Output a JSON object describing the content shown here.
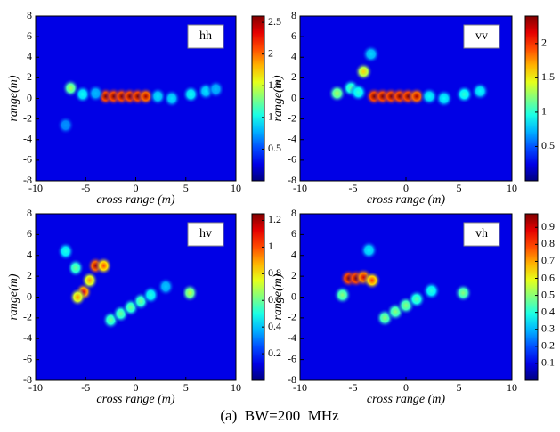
{
  "chart_data": [
    {
      "type": "heatmap",
      "label": "hh",
      "xlabel": "cross range (m)",
      "ylabel": "range(m)",
      "xlim": [
        -10,
        10
      ],
      "ylim": [
        -8,
        8
      ],
      "xticks": [
        -10,
        -5,
        0,
        5,
        10
      ],
      "yticks": [
        -8,
        -6,
        -4,
        -2,
        0,
        2,
        4,
        6,
        8
      ],
      "clim": [
        0,
        2.6
      ],
      "cticks": [
        0.5,
        1,
        1.5,
        2,
        2.5
      ],
      "x": [
        -3,
        -2.2,
        -1.4,
        -0.6,
        0.2,
        1,
        -6.5,
        -5.3,
        -4,
        -7,
        2.2,
        3.6,
        5.5,
        7,
        8
      ],
      "y": [
        0.2,
        0.2,
        0.2,
        0.2,
        0.2,
        0.2,
        1.0,
        0.4,
        0.5,
        -2.6,
        0.2,
        0.0,
        0.4,
        0.7,
        0.9
      ],
      "values": [
        2.6,
        2.6,
        2.6,
        2.6,
        2.6,
        2.5,
        1.4,
        1.0,
        0.8,
        0.7,
        0.9,
        0.9,
        1.0,
        0.9,
        0.8
      ]
    },
    {
      "type": "heatmap",
      "label": "vv",
      "xlabel": "cross range (m)",
      "ylabel": "range(m)",
      "xlim": [
        -10,
        10
      ],
      "ylim": [
        -8,
        8
      ],
      "xticks": [
        -10,
        -5,
        0,
        5,
        10
      ],
      "yticks": [
        -8,
        -6,
        -4,
        -2,
        0,
        2,
        4,
        6,
        8
      ],
      "clim": [
        0,
        2.4
      ],
      "cticks": [
        0.5,
        1,
        1.5,
        2
      ],
      "x": [
        -3,
        -2.2,
        -1.4,
        -0.6,
        0.2,
        1,
        -6.5,
        -5.2,
        -4,
        -3.3,
        -4.5,
        2.2,
        3.6,
        5.5,
        7
      ],
      "y": [
        0.2,
        0.2,
        0.2,
        0.2,
        0.2,
        0.2,
        0.5,
        1.0,
        2.6,
        4.3,
        0.6,
        0.2,
        0.0,
        0.4,
        0.7
      ],
      "values": [
        2.4,
        2.4,
        2.4,
        2.4,
        2.4,
        2.3,
        1.3,
        1.1,
        1.6,
        0.8,
        1.0,
        0.9,
        0.9,
        1.0,
        0.9
      ]
    },
    {
      "type": "heatmap",
      "label": "hv",
      "xlabel": "cross range (m)",
      "ylabel": "range(m)",
      "xlim": [
        -10,
        10
      ],
      "ylim": [
        -8,
        8
      ],
      "xticks": [
        -10,
        -5,
        0,
        5,
        10
      ],
      "yticks": [
        -8,
        -6,
        -4,
        -2,
        0,
        2,
        4,
        6,
        8
      ],
      "clim": [
        0,
        1.25
      ],
      "cticks": [
        0.2,
        0.4,
        0.6,
        0.8,
        1,
        1.2
      ],
      "x": [
        -4,
        -3.2,
        -5.2,
        -5.8,
        -4.6,
        -7,
        -6,
        -2.5,
        -1.5,
        -0.5,
        0.5,
        1.5,
        3,
        5.4
      ],
      "y": [
        3.0,
        3.0,
        0.5,
        0.0,
        1.6,
        4.4,
        2.8,
        -2.2,
        -1.6,
        -1.0,
        -0.4,
        0.2,
        1.0,
        0.4
      ],
      "values": [
        1.2,
        1.0,
        1.1,
        0.9,
        0.9,
        0.5,
        0.6,
        0.6,
        0.6,
        0.6,
        0.6,
        0.5,
        0.4,
        0.7
      ]
    },
    {
      "type": "heatmap",
      "label": "vh",
      "xlabel": "cross range (m)",
      "ylabel": "range(m)",
      "xlim": [
        -10,
        10
      ],
      "ylim": [
        -8,
        8
      ],
      "xticks": [
        -10,
        -5,
        0,
        5,
        10
      ],
      "yticks": [
        -8,
        -6,
        -4,
        -2,
        0,
        2,
        4,
        6,
        8
      ],
      "clim": [
        0,
        0.98
      ],
      "cticks": [
        0.1,
        0.2,
        0.3,
        0.4,
        0.5,
        0.6,
        0.7,
        0.8,
        0.9
      ],
      "x": [
        -5.4,
        -4.7,
        -4,
        -3.2,
        -6,
        -2,
        -1,
        0,
        1,
        2.4,
        5.4,
        -3.5
      ],
      "y": [
        1.8,
        1.8,
        1.9,
        1.6,
        0.2,
        -2.0,
        -1.4,
        -0.8,
        -0.2,
        0.6,
        0.4,
        4.5
      ],
      "values": [
        0.98,
        0.98,
        0.9,
        0.8,
        0.5,
        0.5,
        0.5,
        0.5,
        0.45,
        0.4,
        0.5,
        0.35
      ]
    }
  ],
  "caption": "(a)  BW=200  MHz"
}
